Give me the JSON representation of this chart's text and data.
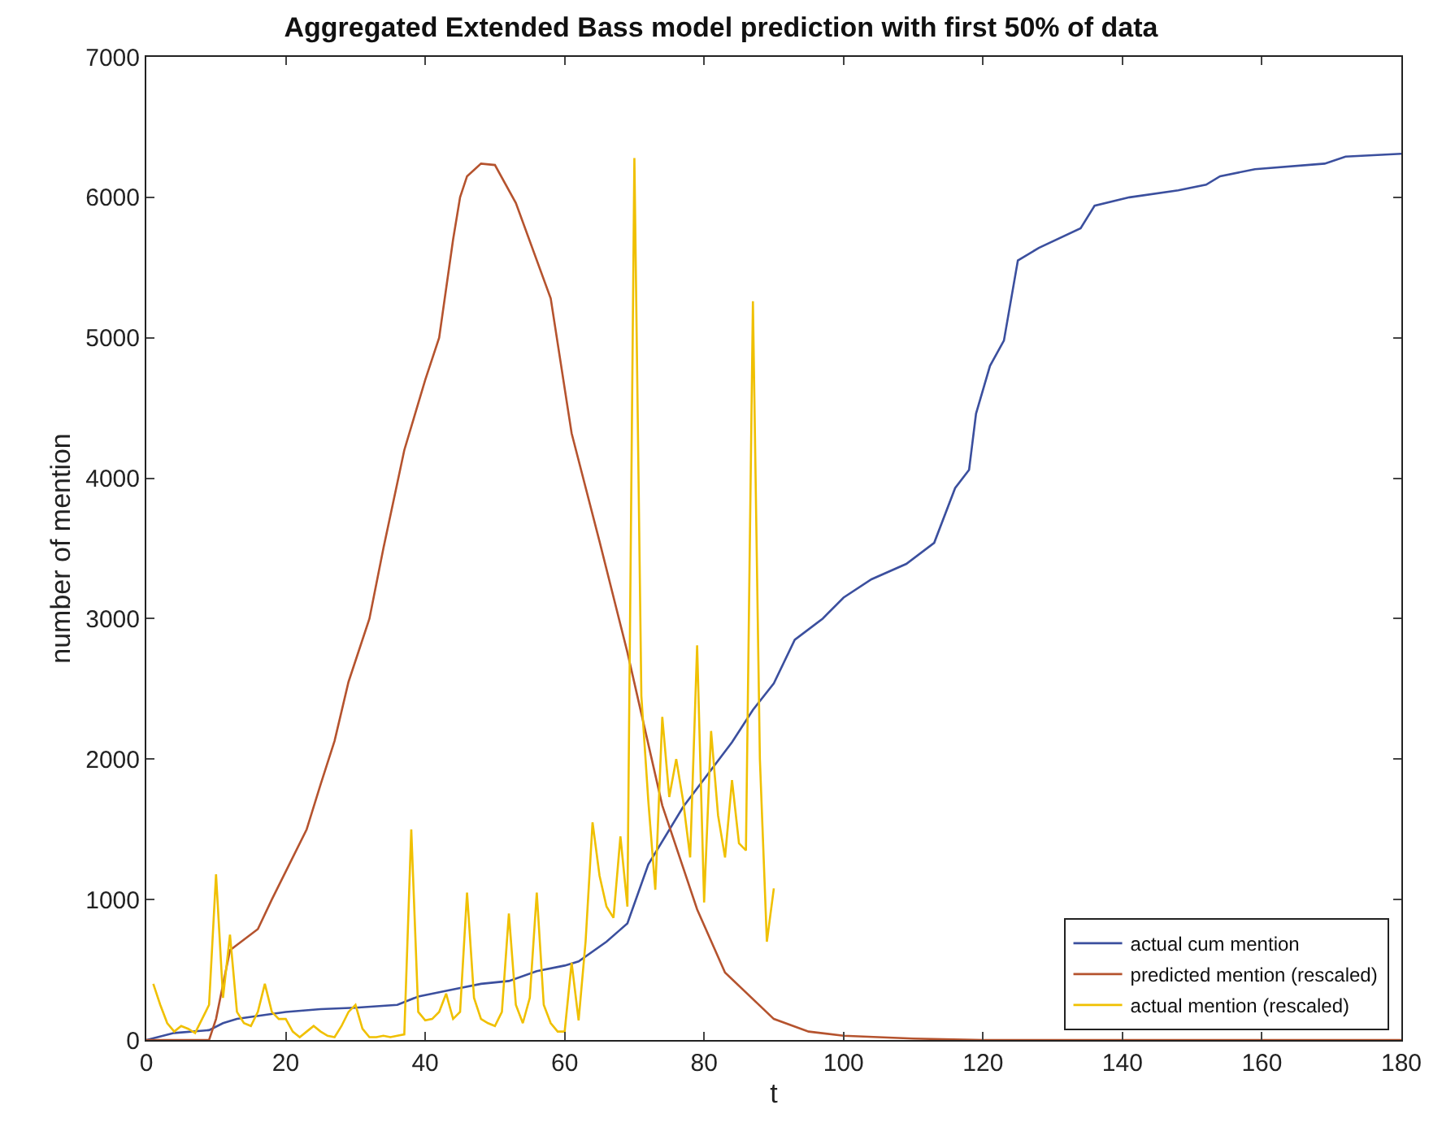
{
  "chart_data": {
    "type": "line",
    "title": "Aggregated Extended Bass model prediction with first 50% of data",
    "xlabel": "t",
    "ylabel": "number of mention",
    "xlim": [
      0,
      180
    ],
    "xticks": [
      0,
      20,
      40,
      60,
      80,
      100,
      120,
      140,
      160,
      180
    ],
    "ylim": [
      0,
      7000
    ],
    "yticks": [
      0,
      1000,
      2000,
      3000,
      4000,
      5000,
      6000,
      7000
    ],
    "legend": "bottom right",
    "marker": "none",
    "line_style": "solid",
    "series": [
      {
        "name": "actual cum mention",
        "color": "#3b4f9e",
        "x": [
          0,
          4,
          9,
          11,
          13,
          20,
          25,
          30,
          36,
          39,
          44,
          48,
          52,
          56,
          60,
          62,
          66,
          69,
          72,
          77,
          84,
          87,
          90,
          93,
          97,
          100,
          104,
          109,
          113,
          116,
          118,
          119,
          121,
          123,
          125,
          128,
          134,
          136,
          141,
          148,
          152,
          154,
          159,
          169,
          172,
          180
        ],
        "values": [
          0,
          50,
          70,
          120,
          150,
          200,
          220,
          230,
          250,
          310,
          360,
          400,
          420,
          490,
          530,
          560,
          700,
          830,
          1250,
          1660,
          2120,
          2350,
          2540,
          2850,
          3000,
          3150,
          3280,
          3390,
          3540,
          3930,
          4060,
          4460,
          4800,
          4980,
          5550,
          5640,
          5780,
          5940,
          6000,
          6050,
          6090,
          6150,
          6200,
          6240,
          6290,
          6310
        ]
      },
      {
        "name": "predicted mention (rescaled)",
        "color": "#b5532e",
        "x": [
          0,
          9,
          10,
          12,
          16,
          18,
          20,
          23,
          25,
          27,
          29,
          32,
          34,
          37,
          40,
          42,
          44,
          45,
          46,
          48,
          50,
          53,
          58,
          61,
          65,
          69,
          74,
          79,
          83,
          90,
          95,
          100,
          110,
          120,
          180
        ],
        "values": [
          0,
          0,
          150,
          640,
          790,
          1000,
          1200,
          1500,
          1820,
          2130,
          2550,
          3000,
          3500,
          4200,
          4700,
          5000,
          5700,
          6000,
          6150,
          6240,
          6230,
          5960,
          5280,
          4320,
          3550,
          2760,
          1670,
          930,
          480,
          150,
          60,
          30,
          10,
          0,
          0
        ]
      },
      {
        "name": "actual mention (rescaled)",
        "color": "#f0c000",
        "x": [
          1,
          2,
          3,
          4,
          5,
          6,
          7,
          8,
          9,
          10,
          11,
          12,
          13,
          14,
          15,
          16,
          17,
          18,
          19,
          20,
          21,
          22,
          23,
          24,
          25,
          26,
          27,
          28,
          29,
          30,
          31,
          32,
          33,
          34,
          35,
          36,
          37,
          38,
          39,
          40,
          41,
          42,
          43,
          44,
          45,
          46,
          47,
          48,
          49,
          50,
          51,
          52,
          53,
          54,
          55,
          56,
          57,
          58,
          59,
          60,
          61,
          62,
          63,
          64,
          65,
          66,
          67,
          68,
          69,
          70,
          71,
          72,
          73,
          74,
          75,
          76,
          77,
          78,
          79,
          80,
          81,
          82,
          83,
          84,
          85,
          86,
          87,
          88,
          89,
          90
        ],
        "values": [
          400,
          250,
          120,
          60,
          100,
          80,
          50,
          150,
          250,
          1180,
          300,
          750,
          200,
          120,
          100,
          200,
          400,
          200,
          150,
          150,
          60,
          20,
          60,
          100,
          60,
          30,
          20,
          100,
          200,
          250,
          80,
          20,
          20,
          30,
          20,
          30,
          40,
          1500,
          200,
          140,
          150,
          200,
          330,
          150,
          200,
          1050,
          300,
          150,
          120,
          100,
          200,
          900,
          250,
          120,
          300,
          1050,
          250,
          120,
          60,
          60,
          550,
          140,
          700,
          1550,
          1170,
          950,
          870,
          1450,
          950,
          6280,
          2450,
          1700,
          1070,
          2300,
          1730,
          2000,
          1700,
          1300,
          2810,
          980,
          2200,
          1600,
          1300,
          1850,
          1400,
          1350,
          5260,
          2000,
          700,
          1080
        ]
      }
    ]
  }
}
